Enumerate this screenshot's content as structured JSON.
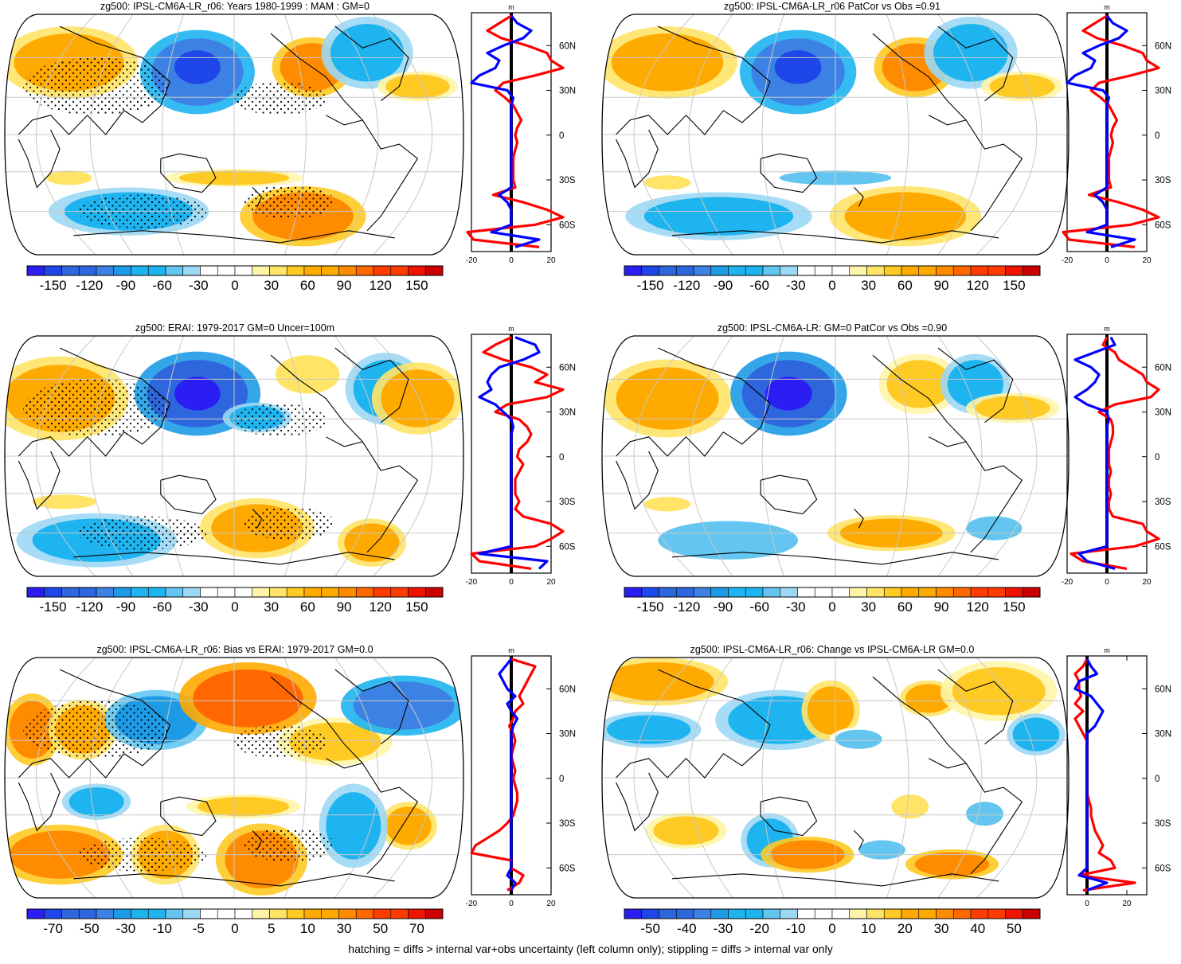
{
  "footnote": "hatching = diffs > internal var+obs uncertainty (left column only); stippling = diffs > internal var only",
  "colors": {
    "palette": [
      "#2A1EF2",
      "#1E46E8",
      "#2E66DD",
      "#3C82E4",
      "#1E9BE6",
      "#1EB4F0",
      "#64C6F0",
      "#9CD8F4",
      "#FFFFFF",
      "#FFFFFF",
      "#FFF5A8",
      "#FFE468",
      "#FFCA24",
      "#FFAA00",
      "#FF8C00",
      "#FF6800",
      "#FF3C00",
      "#EE1400",
      "#CC0000"
    ],
    "land_outline": "#000000",
    "grid": "#C8C8C8",
    "profile_blue": "#0000FF",
    "profile_red": "#FF0000"
  },
  "chart_data": [
    {
      "type": "heatmap",
      "title": "zg500: IPSL-CM6A-LR_r06: Years 1980-1999 : MAM : GM=0",
      "colorbar_ticks": [
        "-150",
        "-120",
        "-90",
        "-60",
        "-30",
        "0",
        "30",
        "60",
        "90",
        "120",
        "150"
      ],
      "profile": {
        "unit": "m",
        "xticks": [
          "-20",
          "0",
          "20"
        ],
        "xlim": [
          -20,
          20
        ],
        "lat_labels": [
          "60N",
          "30N",
          "0",
          "30S",
          "60S"
        ],
        "lat": [
          80,
          75,
          70,
          65,
          60,
          55,
          50,
          45,
          40,
          35,
          30,
          25,
          20,
          15,
          10,
          5,
          0,
          -5,
          -10,
          -15,
          -20,
          -25,
          -30,
          -35,
          -40,
          -45,
          -50,
          -55,
          -60,
          -65,
          -70,
          -75
        ],
        "blue": [
          0,
          3,
          10,
          6,
          -4,
          -12,
          -6,
          -8,
          -16,
          -20,
          -2,
          1,
          0,
          0,
          0,
          0,
          0,
          0,
          0,
          0,
          0,
          0,
          0,
          0,
          -6,
          -2,
          0,
          0,
          0,
          -10,
          14,
          2
        ],
        "red": [
          0,
          -6,
          -12,
          -5,
          8,
          18,
          20,
          26,
          12,
          -4,
          -8,
          -3,
          1,
          3,
          5,
          3,
          2,
          3,
          2,
          1,
          1,
          1,
          1,
          2,
          -9,
          6,
          18,
          26,
          12,
          -22,
          -19,
          14
        ]
      },
      "stipple": true
    },
    {
      "type": "heatmap",
      "title": "zg500: IPSL-CM6A-LR_r06 PatCor vs Obs =0.91",
      "colorbar_ticks": [
        "-150",
        "-120",
        "-90",
        "-60",
        "-30",
        "0",
        "30",
        "60",
        "90",
        "120",
        "150"
      ],
      "profile": {
        "unit": "m",
        "xticks": [
          "-20",
          "0",
          "20"
        ],
        "xlim": [
          -20,
          20
        ],
        "lat_labels": [
          "60N",
          "30N",
          "0",
          "30S",
          "60S"
        ],
        "lat": [
          80,
          75,
          70,
          65,
          60,
          55,
          50,
          45,
          40,
          35,
          30,
          25,
          20,
          15,
          10,
          5,
          0,
          -5,
          -10,
          -15,
          -20,
          -25,
          -30,
          -35,
          -40,
          -45,
          -50,
          -55,
          -60,
          -65,
          -70,
          -75
        ],
        "blue": [
          0,
          3,
          10,
          6,
          -4,
          -12,
          -6,
          -8,
          -16,
          -20,
          -2,
          1,
          0,
          0,
          0,
          0,
          0,
          0,
          0,
          0,
          0,
          0,
          0,
          0,
          -6,
          -2,
          0,
          0,
          0,
          -10,
          14,
          2
        ],
        "red": [
          0,
          -6,
          -12,
          -5,
          8,
          18,
          20,
          26,
          12,
          -4,
          -8,
          -3,
          1,
          3,
          5,
          3,
          2,
          3,
          2,
          1,
          1,
          1,
          1,
          2,
          -9,
          6,
          18,
          26,
          12,
          -22,
          -19,
          14
        ]
      },
      "stipple": false
    },
    {
      "type": "heatmap",
      "title": "zg500: ERAI: 1979-2017 GM=0 Uncer=100m",
      "colorbar_ticks": [
        "-150",
        "-120",
        "-90",
        "-60",
        "-30",
        "0",
        "30",
        "60",
        "90",
        "120",
        "150"
      ],
      "profile": {
        "unit": "m",
        "xticks": [
          "-20",
          "0",
          "20"
        ],
        "xlim": [
          -20,
          20
        ],
        "lat_labels": [
          "60N",
          "30N",
          "0",
          "30S",
          "60S"
        ],
        "lat": [
          80,
          75,
          70,
          65,
          60,
          55,
          50,
          45,
          40,
          35,
          30,
          25,
          20,
          15,
          10,
          5,
          0,
          -5,
          -10,
          -15,
          -20,
          -25,
          -30,
          -35,
          -40,
          -45,
          -50,
          -55,
          -60,
          -65,
          -70,
          -75
        ],
        "blue": [
          2,
          12,
          14,
          6,
          -6,
          -10,
          -12,
          -10,
          -16,
          -8,
          -4,
          0,
          1,
          0,
          0,
          0,
          0,
          0,
          0,
          0,
          0,
          0,
          0,
          0,
          0,
          0,
          0,
          0,
          0,
          -16,
          18,
          14
        ],
        "red": [
          0,
          -8,
          -14,
          -4,
          10,
          18,
          12,
          26,
          18,
          -2,
          -8,
          4,
          8,
          10,
          8,
          4,
          3,
          6,
          4,
          2,
          2,
          2,
          4,
          2,
          6,
          20,
          26,
          20,
          12,
          -20,
          -16,
          10
        ]
      },
      "stipple": true
    },
    {
      "type": "heatmap",
      "title": "zg500: IPSL-CM6A-LR: GM=0 PatCor vs Obs =0.90",
      "colorbar_ticks": [
        "-150",
        "-120",
        "-90",
        "-60",
        "-30",
        "0",
        "30",
        "60",
        "90",
        "120",
        "150"
      ],
      "profile": {
        "unit": "m",
        "xticks": [
          "-20",
          "0",
          "20"
        ],
        "xlim": [
          -20,
          20
        ],
        "lat_labels": [
          "60N",
          "30N",
          "0",
          "30S",
          "60S"
        ],
        "lat": [
          80,
          75,
          70,
          65,
          60,
          55,
          50,
          45,
          40,
          35,
          30,
          25,
          20,
          15,
          10,
          5,
          0,
          -5,
          -10,
          -15,
          -20,
          -25,
          -30,
          -35,
          -40,
          -45,
          -50,
          -55,
          -60,
          -65,
          -70,
          -75
        ],
        "blue": [
          2,
          4,
          -6,
          -16,
          -8,
          -4,
          -6,
          -10,
          -16,
          -10,
          0,
          1,
          0,
          0,
          0,
          0,
          0,
          0,
          0,
          0,
          0,
          0,
          0,
          0,
          0,
          0,
          0,
          0,
          0,
          -14,
          -10,
          4
        ],
        "red": [
          0,
          -2,
          4,
          6,
          12,
          18,
          20,
          26,
          22,
          4,
          -4,
          2,
          3,
          3,
          2,
          1,
          1,
          1,
          2,
          1,
          1,
          2,
          1,
          1,
          3,
          18,
          20,
          26,
          14,
          -18,
          -12,
          10
        ]
      },
      "stipple": false
    },
    {
      "type": "heatmap",
      "title": "zg500: IPSL-CM6A-LR_r06: Bias vs ERAI: 1979-2017 GM=0.0",
      "colorbar_ticks": [
        "-70",
        "-50",
        "-30",
        "-10",
        "-5",
        "0",
        "5",
        "10",
        "30",
        "50",
        "70"
      ],
      "profile": {
        "unit": "m",
        "xticks": [
          "-20",
          "0",
          "20"
        ],
        "xlim": [
          -20,
          20
        ],
        "lat_labels": [
          "60N",
          "30N",
          "0",
          "30S",
          "60S"
        ],
        "lat": [
          80,
          75,
          70,
          65,
          60,
          55,
          50,
          45,
          40,
          35,
          30,
          25,
          20,
          15,
          10,
          5,
          0,
          -5,
          -10,
          -15,
          -20,
          -25,
          -30,
          -35,
          -40,
          -45,
          -50,
          -55,
          -60,
          -65,
          -70,
          -75
        ],
        "blue": [
          0,
          -3,
          -6,
          -4,
          -2,
          2,
          -2,
          0,
          3,
          1,
          0,
          0,
          0,
          0,
          0,
          0,
          0,
          0,
          0,
          0,
          0,
          0,
          0,
          0,
          0,
          0,
          0,
          0,
          0,
          -2,
          2,
          0
        ],
        "red": [
          0,
          12,
          10,
          8,
          6,
          4,
          6,
          2,
          1,
          -1,
          1,
          2,
          1,
          0,
          1,
          2,
          1,
          2,
          3,
          3,
          2,
          1,
          -2,
          -6,
          -12,
          -18,
          -20,
          0,
          0,
          6,
          4,
          -2
        ]
      },
      "stipple": true
    },
    {
      "type": "heatmap",
      "title": "zg500: IPSL-CM6A-LR_r06: Change vs IPSL-CM6A-LR GM=0.0",
      "colorbar_ticks": [
        "-50",
        "-40",
        "-30",
        "-20",
        "-10",
        "0",
        "10",
        "20",
        "30",
        "40",
        "50"
      ],
      "profile": {
        "unit": "m",
        "xticks": [
          "0",
          "20"
        ],
        "xlim": [
          -10,
          30
        ],
        "lat_labels": [
          "60N",
          "30N",
          "0",
          "30S",
          "60S"
        ],
        "lat": [
          80,
          75,
          70,
          65,
          60,
          55,
          50,
          45,
          40,
          35,
          30,
          25,
          20,
          15,
          10,
          5,
          0,
          -5,
          -10,
          -15,
          -20,
          -25,
          -30,
          -35,
          -40,
          -45,
          -50,
          -55,
          -60,
          -65,
          -70,
          -75
        ],
        "blue": [
          0,
          2,
          5,
          -4,
          -6,
          2,
          5,
          8,
          6,
          4,
          0,
          0,
          0,
          0,
          0,
          0,
          0,
          0,
          0,
          0,
          0,
          0,
          0,
          0,
          0,
          0,
          0,
          0,
          0,
          -4,
          10,
          0
        ],
        "red": [
          0,
          -2,
          -6,
          -4,
          -4,
          -3,
          -6,
          -2,
          -6,
          -4,
          -2,
          0,
          0,
          0,
          0,
          0,
          0,
          0,
          0,
          1,
          2,
          2,
          3,
          4,
          6,
          8,
          6,
          12,
          14,
          -4,
          24,
          -2
        ]
      },
      "stipple": false
    }
  ]
}
